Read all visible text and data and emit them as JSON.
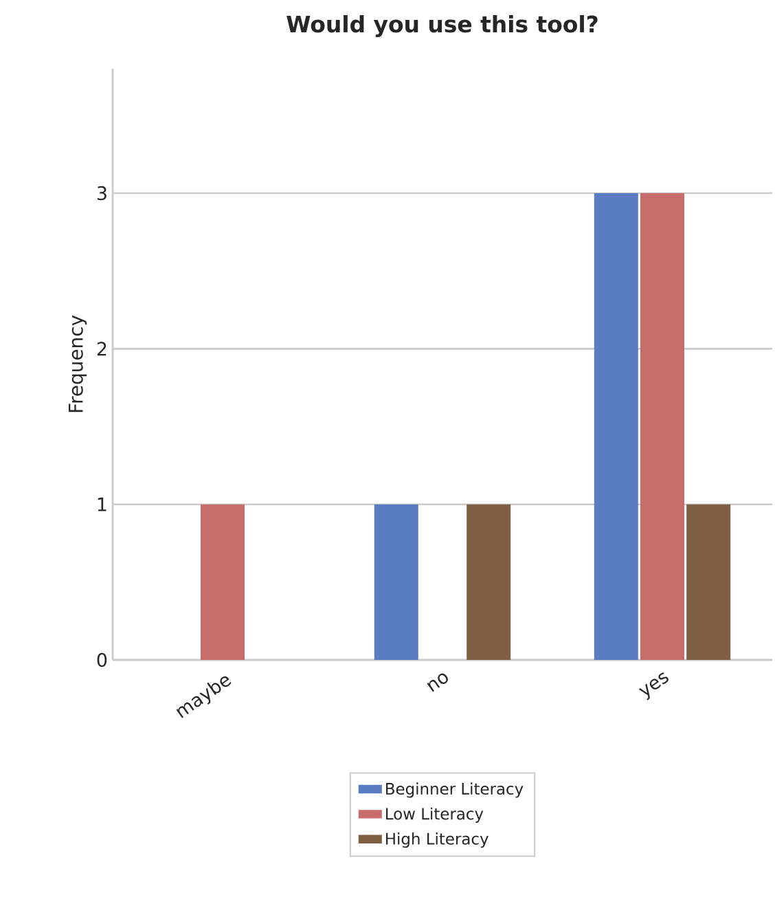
{
  "chart_data": {
    "type": "bar",
    "title": "Would you use this tool?",
    "ylabel": "Frequency",
    "categories": [
      "maybe",
      "no",
      "yes"
    ],
    "series": [
      {
        "name": "Beginner Literacy",
        "color": "#5a7dc1",
        "values": [
          0,
          1,
          3
        ]
      },
      {
        "name": "Low Literacy",
        "color": "#c66c6b",
        "values": [
          1,
          0,
          3
        ]
      },
      {
        "name": "High Literacy",
        "color": "#7f5f43",
        "values": [
          0,
          1,
          1
        ]
      }
    ],
    "ylim": [
      0,
      3.8
    ],
    "yticks": [
      0,
      1,
      2,
      3
    ],
    "grid": "y",
    "legend": "bottom"
  }
}
